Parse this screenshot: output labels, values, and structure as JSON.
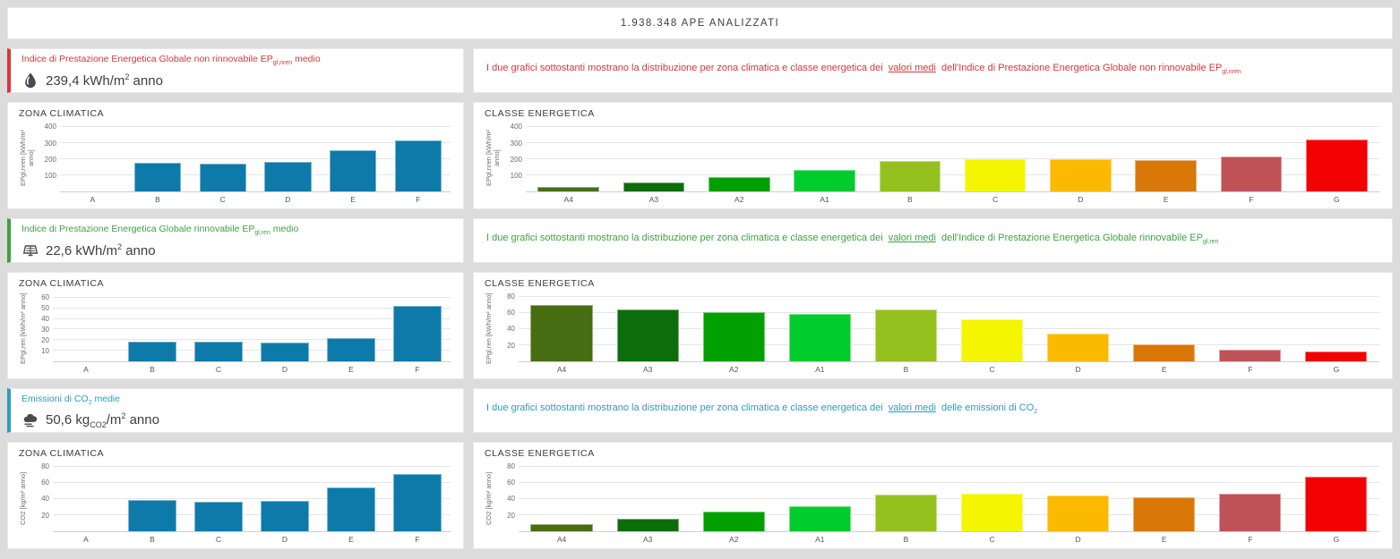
{
  "header": {
    "title": "1.938.348 APE ANALIZZATI"
  },
  "colors": {
    "background": "#dcdcdc",
    "zona_bar_blue": "#0d7aa9",
    "accent_nren_red": "#d7373d",
    "accent_ren_green": "#3fa044",
    "accent_co2_teal": "#2f9bbb",
    "class_palette": [
      "#476e13",
      "#0b6e0b",
      "#00a000",
      "#00cc2c",
      "#95c11f",
      "#f5f500",
      "#fbba00",
      "#d97708",
      "#c05257",
      "#f20202"
    ]
  },
  "sections": [
    {
      "accent": "#d7373d",
      "metric": {
        "icon": "flame-drop-icon",
        "title_parts": [
          {
            "t": "text",
            "s": "Indice di Prestazione Energetica Globale non rinnovabile EP"
          },
          {
            "t": "sub",
            "s": "gl,nren"
          },
          {
            "t": "text",
            "s": " medio"
          }
        ],
        "value_parts": [
          {
            "t": "text",
            "s": "239,4 kWh/m"
          },
          {
            "t": "sup",
            "s": "2"
          },
          {
            "t": "text",
            "s": " anno"
          }
        ]
      },
      "description_parts": [
        {
          "t": "text",
          "s": "I due grafici sottostanti mostrano la distribuzione per zona climatica e classe energetica dei "
        },
        {
          "t": "link",
          "s": "valori medi"
        },
        {
          "t": "text",
          "s": " dell'Indice di Prestazione Energetica Globale non rinnovabile EP"
        },
        {
          "t": "sub",
          "s": "gl,nren"
        }
      ]
    },
    {
      "accent": "#3fa044",
      "metric": {
        "icon": "solar-panel-icon",
        "title_parts": [
          {
            "t": "text",
            "s": "Indice di Prestazione Energetica Globale rinnovabile EP"
          },
          {
            "t": "sub",
            "s": "gl,ren"
          },
          {
            "t": "text",
            "s": " medio"
          }
        ],
        "value_parts": [
          {
            "t": "text",
            "s": "22,6 kWh/m"
          },
          {
            "t": "sup",
            "s": "2"
          },
          {
            "t": "text",
            "s": " anno"
          }
        ]
      },
      "description_parts": [
        {
          "t": "text",
          "s": "I due grafici sottostanti mostrano la distribuzione per zona climatica e classe energetica dei "
        },
        {
          "t": "link",
          "s": "valori medi"
        },
        {
          "t": "text",
          "s": " dell'Indice di Prestazione Energetica Globale rinnovabile EP"
        },
        {
          "t": "sub",
          "s": "gl,ren"
        }
      ]
    },
    {
      "accent": "#2f9bbb",
      "metric": {
        "icon": "co2-cloud-icon",
        "title_parts": [
          {
            "t": "text",
            "s": "Emissioni di CO"
          },
          {
            "t": "sub",
            "s": "2"
          },
          {
            "t": "text",
            "s": " medie"
          }
        ],
        "value_parts": [
          {
            "t": "text",
            "s": "50,6 kg"
          },
          {
            "t": "sub",
            "s": "CO2"
          },
          {
            "t": "text",
            "s": "/m"
          },
          {
            "t": "sup",
            "s": "2"
          },
          {
            "t": "text",
            "s": " anno"
          }
        ]
      },
      "description_parts": [
        {
          "t": "text",
          "s": "I due grafici sottostanti mostrano la distribuzione per zona climatica e classe energetica dei "
        },
        {
          "t": "link",
          "s": "valori medi"
        },
        {
          "t": "text",
          "s": " delle emissioni di CO"
        },
        {
          "t": "sub",
          "s": "2"
        }
      ]
    }
  ],
  "chart_data": [
    {
      "type": "bar",
      "title": "ZONA CLIMATICA",
      "ylabel": "EPgl,nren [kWh/m² anno]",
      "categories": [
        "A",
        "B",
        "C",
        "D",
        "E",
        "F"
      ],
      "values": [
        0,
        180,
        173,
        186,
        255,
        320
      ],
      "yticks": [
        100,
        200,
        300,
        400
      ],
      "ymax": 430,
      "color": "#0d7aa9",
      "grid": true,
      "legend": "none"
    },
    {
      "type": "bar",
      "title": "CLASSE ENERGETICA",
      "ylabel": "EPgl,nren [kWh/m² anno]",
      "categories": [
        "A4",
        "A3",
        "A2",
        "A1",
        "B",
        "C",
        "D",
        "E",
        "F",
        "G"
      ],
      "values": [
        30,
        57,
        90,
        132,
        192,
        202,
        200,
        196,
        217,
        326
      ],
      "yticks": [
        100,
        200,
        300,
        400
      ],
      "ymax": 430,
      "colors": [
        "#476e13",
        "#0b6e0b",
        "#00a000",
        "#00cc2c",
        "#95c11f",
        "#f5f500",
        "#fbba00",
        "#d97708",
        "#c05257",
        "#f20202"
      ],
      "grid": true,
      "legend": "none"
    },
    {
      "type": "bar",
      "title": "ZONA CLIMATICA",
      "ylabel": "EPgl,ren [kWh/m² anno]",
      "categories": [
        "A",
        "B",
        "C",
        "D",
        "E",
        "F"
      ],
      "values": [
        0,
        19,
        19,
        18,
        22,
        52
      ],
      "yticks": [
        10,
        20,
        30,
        40,
        50,
        60
      ],
      "ymax": 65,
      "color": "#0d7aa9",
      "grid": true,
      "legend": "none"
    },
    {
      "type": "bar",
      "title": "CLASSE ENERGETICA",
      "ylabel": "EPgl,ren [kWh/m² anno]",
      "categories": [
        "A4",
        "A3",
        "A2",
        "A1",
        "B",
        "C",
        "D",
        "E",
        "F",
        "G"
      ],
      "values": [
        70,
        64,
        61,
        58,
        64,
        52,
        34,
        21,
        14,
        12
      ],
      "yticks": [
        20,
        40,
        60,
        80
      ],
      "ymax": 85,
      "colors": [
        "#476e13",
        "#0b6e0b",
        "#00a000",
        "#00cc2c",
        "#95c11f",
        "#f5f500",
        "#fbba00",
        "#d97708",
        "#c05257",
        "#f20202"
      ],
      "grid": true,
      "legend": "none"
    },
    {
      "type": "bar",
      "title": "ZONA CLIMATICA",
      "ylabel": "CO2 [kg/m² anno]",
      "categories": [
        "A",
        "B",
        "C",
        "D",
        "E",
        "F"
      ],
      "values": [
        0,
        39,
        36,
        38,
        54,
        71
      ],
      "yticks": [
        20,
        40,
        60,
        80
      ],
      "ymax": 85,
      "color": "#0d7aa9",
      "grid": true,
      "legend": "none"
    },
    {
      "type": "bar",
      "title": "CLASSE ENERGETICA",
      "ylabel": "CO2 [kg/m² anno]",
      "categories": [
        "A4",
        "A3",
        "A2",
        "A1",
        "B",
        "C",
        "D",
        "E",
        "F",
        "G"
      ],
      "values": [
        9,
        15,
        24,
        31,
        45,
        46,
        44,
        42,
        46,
        67
      ],
      "yticks": [
        20,
        40,
        60,
        80
      ],
      "ymax": 85,
      "colors": [
        "#476e13",
        "#0b6e0b",
        "#00a000",
        "#00cc2c",
        "#95c11f",
        "#f5f500",
        "#fbba00",
        "#d97708",
        "#c05257",
        "#f20202"
      ],
      "grid": true,
      "legend": "none"
    }
  ]
}
